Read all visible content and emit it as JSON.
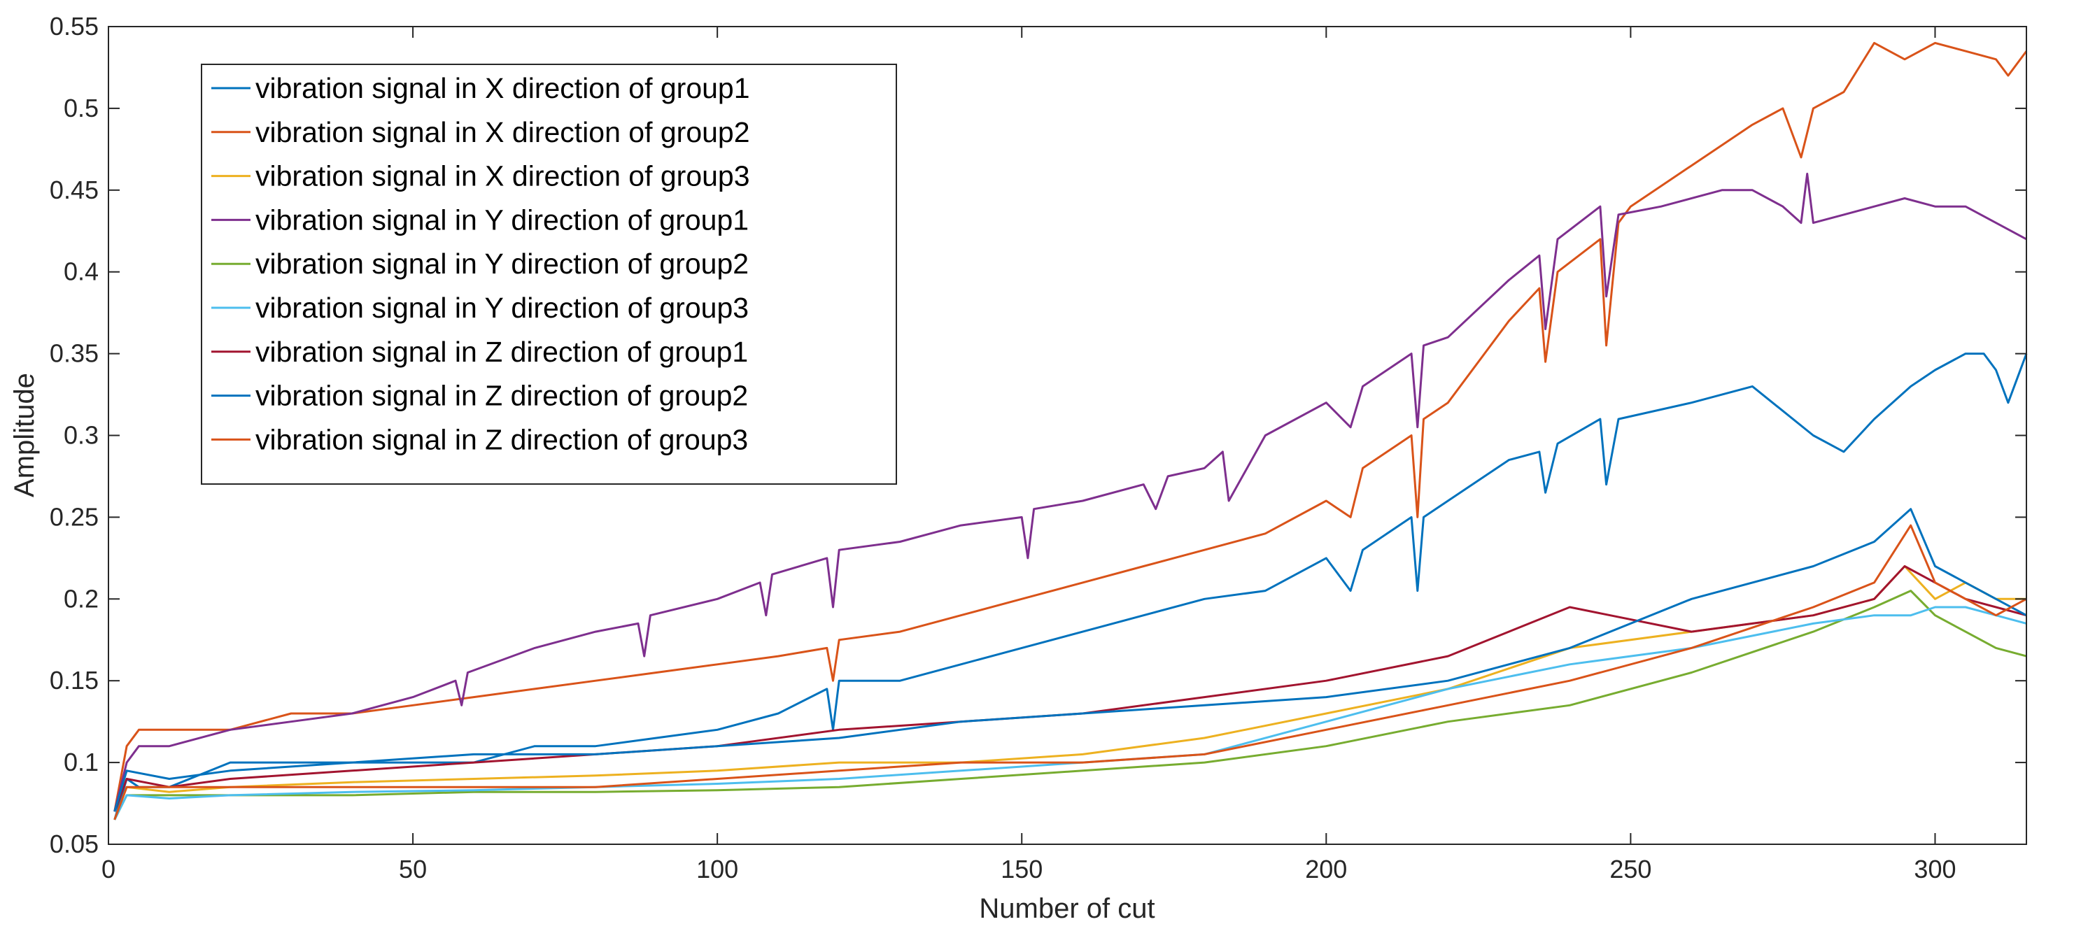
{
  "chart_data": {
    "type": "line",
    "xlabel": "Number of cut",
    "ylabel": "Amplitude",
    "xlim": [
      0,
      315
    ],
    "ylim": [
      0.05,
      0.55
    ],
    "xticks": [
      0,
      50,
      100,
      150,
      200,
      250,
      300
    ],
    "yticks": [
      0.05,
      0.1,
      0.15,
      0.2,
      0.25,
      0.3,
      0.35,
      0.4,
      0.45,
      0.5,
      0.55
    ],
    "ytick_labels": [
      "0.05",
      "0.1",
      "0.15",
      "0.2",
      "0.25",
      "0.3",
      "0.35",
      "0.4",
      "0.45",
      "0.5",
      "0.55"
    ],
    "grid": false,
    "legend_position": "top-left",
    "series": [
      {
        "name": "vibration signal in X direction of group1",
        "color": "#0072BD",
        "x": [
          1,
          3,
          5,
          10,
          20,
          30,
          40,
          50,
          60,
          70,
          80,
          90,
          100,
          110,
          118,
          119,
          120,
          130,
          140,
          150,
          160,
          170,
          180,
          190,
          200,
          204,
          206,
          210,
          214,
          215,
          216,
          220,
          230,
          235,
          236,
          238,
          245,
          246,
          248,
          260,
          270,
          280,
          285,
          290,
          296,
          300,
          305,
          308,
          310,
          312,
          315
        ],
        "values": [
          0.065,
          0.09,
          0.085,
          0.085,
          0.1,
          0.1,
          0.1,
          0.1,
          0.1,
          0.11,
          0.11,
          0.115,
          0.12,
          0.13,
          0.145,
          0.12,
          0.15,
          0.15,
          0.16,
          0.17,
          0.18,
          0.19,
          0.2,
          0.205,
          0.225,
          0.205,
          0.23,
          0.24,
          0.25,
          0.205,
          0.25,
          0.26,
          0.285,
          0.29,
          0.265,
          0.295,
          0.31,
          0.27,
          0.31,
          0.32,
          0.33,
          0.3,
          0.29,
          0.31,
          0.33,
          0.34,
          0.35,
          0.35,
          0.34,
          0.32,
          0.35
        ]
      },
      {
        "name": "vibration signal in X direction of group2",
        "color": "#D95319",
        "x": [
          1,
          3,
          5,
          10,
          20,
          30,
          40,
          50,
          60,
          70,
          80,
          90,
          100,
          110,
          118,
          119,
          120,
          130,
          140,
          150,
          160,
          170,
          180,
          190,
          200,
          204,
          206,
          210,
          214,
          215,
          216,
          220,
          230,
          235,
          236,
          238,
          245,
          246,
          248,
          250,
          260,
          270,
          275,
          278,
          280,
          285,
          290,
          295,
          300,
          305,
          310,
          312,
          315
        ],
        "values": [
          0.07,
          0.11,
          0.12,
          0.12,
          0.12,
          0.13,
          0.13,
          0.135,
          0.14,
          0.145,
          0.15,
          0.155,
          0.16,
          0.165,
          0.17,
          0.15,
          0.175,
          0.18,
          0.19,
          0.2,
          0.21,
          0.22,
          0.23,
          0.24,
          0.26,
          0.25,
          0.28,
          0.29,
          0.3,
          0.25,
          0.31,
          0.32,
          0.37,
          0.39,
          0.345,
          0.4,
          0.42,
          0.355,
          0.43,
          0.44,
          0.465,
          0.49,
          0.5,
          0.47,
          0.5,
          0.51,
          0.54,
          0.53,
          0.54,
          0.535,
          0.53,
          0.52,
          0.535
        ]
      },
      {
        "name": "vibration signal in X direction of group3",
        "color": "#EDB120",
        "x": [
          1,
          3,
          10,
          20,
          40,
          60,
          80,
          100,
          120,
          140,
          160,
          180,
          200,
          220,
          240,
          260,
          280,
          290,
          295,
          300,
          305,
          310,
          315
        ],
        "values": [
          0.065,
          0.085,
          0.082,
          0.085,
          0.088,
          0.09,
          0.092,
          0.095,
          0.1,
          0.1,
          0.105,
          0.115,
          0.13,
          0.145,
          0.17,
          0.18,
          0.19,
          0.2,
          0.22,
          0.2,
          0.21,
          0.2,
          0.2
        ]
      },
      {
        "name": "vibration signal in Y direction of group1",
        "color": "#7E2F8E",
        "x": [
          1,
          3,
          5,
          10,
          20,
          30,
          40,
          50,
          57,
          58,
          59,
          70,
          80,
          87,
          88,
          89,
          100,
          107,
          108,
          109,
          118,
          119,
          120,
          130,
          140,
          150,
          151,
          152,
          160,
          170,
          172,
          174,
          180,
          183,
          184,
          190,
          200,
          204,
          206,
          210,
          214,
          215,
          216,
          220,
          230,
          235,
          236,
          238,
          245,
          246,
          248,
          255,
          265,
          270,
          275,
          278,
          279,
          280,
          285,
          290,
          295,
          300,
          305,
          310,
          315
        ],
        "values": [
          0.07,
          0.1,
          0.11,
          0.11,
          0.12,
          0.125,
          0.13,
          0.14,
          0.15,
          0.135,
          0.155,
          0.17,
          0.18,
          0.185,
          0.165,
          0.19,
          0.2,
          0.21,
          0.19,
          0.215,
          0.225,
          0.195,
          0.23,
          0.235,
          0.245,
          0.25,
          0.225,
          0.255,
          0.26,
          0.27,
          0.255,
          0.275,
          0.28,
          0.29,
          0.26,
          0.3,
          0.32,
          0.305,
          0.33,
          0.34,
          0.35,
          0.305,
          0.355,
          0.36,
          0.395,
          0.41,
          0.365,
          0.42,
          0.44,
          0.385,
          0.435,
          0.44,
          0.45,
          0.45,
          0.44,
          0.43,
          0.46,
          0.43,
          0.435,
          0.44,
          0.445,
          0.44,
          0.44,
          0.43,
          0.42
        ]
      },
      {
        "name": "vibration signal in Y direction of group2",
        "color": "#77AC30",
        "x": [
          1,
          3,
          10,
          20,
          40,
          60,
          80,
          100,
          120,
          140,
          160,
          180,
          200,
          220,
          240,
          260,
          280,
          290,
          296,
          300,
          305,
          310,
          315
        ],
        "values": [
          0.065,
          0.08,
          0.08,
          0.08,
          0.08,
          0.082,
          0.082,
          0.083,
          0.085,
          0.09,
          0.095,
          0.1,
          0.11,
          0.125,
          0.135,
          0.155,
          0.18,
          0.195,
          0.205,
          0.19,
          0.18,
          0.17,
          0.165
        ]
      },
      {
        "name": "vibration signal in Y direction of group3",
        "color": "#4DBEEE",
        "x": [
          1,
          3,
          10,
          20,
          40,
          60,
          80,
          100,
          120,
          140,
          160,
          180,
          200,
          220,
          240,
          260,
          280,
          290,
          296,
          300,
          305,
          310,
          315
        ],
        "values": [
          0.065,
          0.08,
          0.078,
          0.08,
          0.082,
          0.083,
          0.085,
          0.087,
          0.09,
          0.095,
          0.1,
          0.105,
          0.125,
          0.145,
          0.16,
          0.17,
          0.185,
          0.19,
          0.19,
          0.195,
          0.195,
          0.19,
          0.185
        ]
      },
      {
        "name": "vibration signal in Z direction of group1",
        "color": "#A2142F",
        "x": [
          1,
          3,
          10,
          20,
          40,
          60,
          80,
          100,
          120,
          140,
          160,
          180,
          200,
          220,
          240,
          260,
          270,
          280,
          290,
          295,
          300,
          305,
          310,
          315
        ],
        "values": [
          0.07,
          0.09,
          0.085,
          0.09,
          0.095,
          0.1,
          0.105,
          0.11,
          0.12,
          0.125,
          0.13,
          0.14,
          0.15,
          0.165,
          0.195,
          0.18,
          0.185,
          0.19,
          0.2,
          0.22,
          0.21,
          0.2,
          0.195,
          0.19
        ]
      },
      {
        "name": "vibration signal in Z direction of group2",
        "color": "#0072BD",
        "x": [
          1,
          3,
          10,
          20,
          40,
          60,
          80,
          100,
          120,
          140,
          160,
          180,
          200,
          220,
          240,
          260,
          280,
          290,
          296,
          300,
          305,
          310,
          315
        ],
        "values": [
          0.07,
          0.095,
          0.09,
          0.095,
          0.1,
          0.105,
          0.105,
          0.11,
          0.115,
          0.125,
          0.13,
          0.135,
          0.14,
          0.15,
          0.17,
          0.2,
          0.22,
          0.235,
          0.255,
          0.22,
          0.21,
          0.2,
          0.19
        ]
      },
      {
        "name": "vibration signal in Z direction of group3",
        "color": "#D95319",
        "x": [
          1,
          3,
          10,
          20,
          40,
          60,
          80,
          100,
          120,
          140,
          160,
          180,
          200,
          220,
          240,
          260,
          280,
          290,
          296,
          300,
          305,
          310,
          315
        ],
        "values": [
          0.065,
          0.085,
          0.085,
          0.085,
          0.085,
          0.085,
          0.085,
          0.09,
          0.095,
          0.1,
          0.1,
          0.105,
          0.12,
          0.135,
          0.15,
          0.17,
          0.195,
          0.21,
          0.245,
          0.21,
          0.2,
          0.19,
          0.2
        ]
      }
    ]
  }
}
